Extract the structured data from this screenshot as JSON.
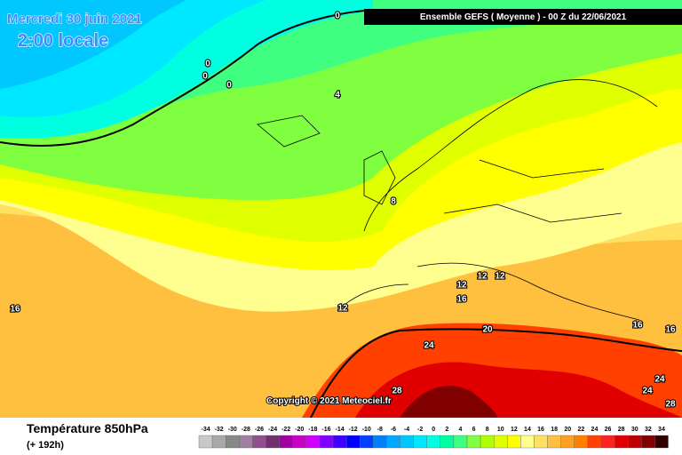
{
  "header": {
    "date": "Mercredi 30 juin 2021",
    "time": "2:00 locale",
    "model": "Ensemble GEFS  ( Moyenne )  -  00 Z du 22/06/2021",
    "copyright": "Copyright © 2021 Meteociel.fr"
  },
  "footer": {
    "parameter": "Température 850hPa",
    "lead": "(+ 192h)"
  },
  "contour_labels": [
    0,
    0,
    0,
    0,
    4,
    8,
    12,
    12,
    12,
    12,
    16,
    16,
    16,
    16,
    20,
    24,
    24,
    24,
    28,
    28
  ],
  "scale": [
    {
      "label": -34,
      "color": "#c8c8c8"
    },
    {
      "label": -32,
      "color": "#a8a8a8"
    },
    {
      "label": -30,
      "color": "#888888"
    },
    {
      "label": -28,
      "color": "#a080a0"
    },
    {
      "label": -26,
      "color": "#905090"
    },
    {
      "label": -24,
      "color": "#703070"
    },
    {
      "label": -22,
      "color": "#a000a0"
    },
    {
      "label": -20,
      "color": "#c800c8"
    },
    {
      "label": -18,
      "color": "#d000ff"
    },
    {
      "label": -16,
      "color": "#8000ff"
    },
    {
      "label": -14,
      "color": "#4000ff"
    },
    {
      "label": -12,
      "color": "#0000ff"
    },
    {
      "label": -10,
      "color": "#0040ff"
    },
    {
      "label": -8,
      "color": "#0080ff"
    },
    {
      "label": -6,
      "color": "#00a8ff"
    },
    {
      "label": -4,
      "color": "#00c8ff"
    },
    {
      "label": -2,
      "color": "#00e8ff"
    },
    {
      "label": 0,
      "color": "#00ffe0"
    },
    {
      "label": 2,
      "color": "#00ffa0"
    },
    {
      "label": 4,
      "color": "#40ff80"
    },
    {
      "label": 6,
      "color": "#80ff40"
    },
    {
      "label": 8,
      "color": "#b0ff00"
    },
    {
      "label": 10,
      "color": "#e0ff00"
    },
    {
      "label": 12,
      "color": "#ffff00"
    },
    {
      "label": 14,
      "color": "#ffff90"
    },
    {
      "label": 16,
      "color": "#ffe060"
    },
    {
      "label": 18,
      "color": "#ffc040"
    },
    {
      "label": 20,
      "color": "#ffa020"
    },
    {
      "label": 22,
      "color": "#ff8000"
    },
    {
      "label": 24,
      "color": "#ff4000"
    },
    {
      "label": 26,
      "color": "#ff2020"
    },
    {
      "label": 28,
      "color": "#e00000"
    },
    {
      "label": 30,
      "color": "#c00000"
    },
    {
      "label": 32,
      "color": "#800000"
    },
    {
      "label": 34,
      "color": "#300000"
    }
  ]
}
